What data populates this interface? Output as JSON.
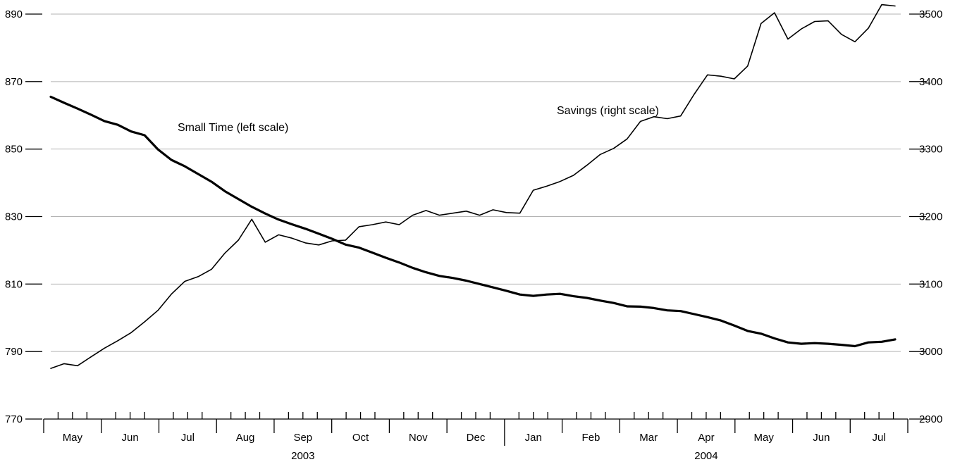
{
  "chart_data": {
    "type": "line",
    "left_axis": {
      "ylim": [
        770,
        890
      ],
      "ticks": [
        "770",
        "790",
        "810",
        "830",
        "850",
        "870",
        "890"
      ]
    },
    "right_axis": {
      "ylim": [
        2900,
        3500
      ],
      "ticks": [
        "2900",
        "3000",
        "3100",
        "3200",
        "3300",
        "3400",
        "3500"
      ]
    },
    "grid": "horizontal",
    "x_month_labels": [
      "May",
      "Jun",
      "Jul",
      "Aug",
      "Sep",
      "Oct",
      "Nov",
      "Dec",
      "Jan",
      "Feb",
      "Mar",
      "Apr",
      "May",
      "Jun",
      "Jul"
    ],
    "x_year_labels": [
      {
        "label": "2003",
        "center_month": 4.5
      },
      {
        "label": "2004",
        "center_month": 11.5
      }
    ],
    "x_start": "2003-05",
    "x_end": "2004-07",
    "weeks_per_month": 4,
    "series": [
      {
        "name": "Small Time (left scale)",
        "axis": "left",
        "color": "#000000",
        "values": [
          865.5,
          863.7,
          862.0,
          860.2,
          858.3,
          857.2,
          855.2,
          854.1,
          849.9,
          846.8,
          844.9,
          842.6,
          840.3,
          837.5,
          835.2,
          832.9,
          830.9,
          829.1,
          827.7,
          826.4,
          824.9,
          823.4,
          821.7,
          820.8,
          819.3,
          817.8,
          816.4,
          814.8,
          813.5,
          812.4,
          811.8,
          811.0,
          810.0,
          809.0,
          808.0,
          806.9,
          806.5,
          806.9,
          807.1,
          806.4,
          805.9,
          805.1,
          804.4,
          803.4,
          803.3,
          802.9,
          802.2,
          802.0,
          801.1,
          800.2,
          799.2,
          797.7,
          796.1,
          795.3,
          793.9,
          792.7,
          792.3,
          792.5,
          792.3,
          792.0,
          791.6,
          792.7,
          792.9,
          793.6
        ]
      },
      {
        "name": "Savings (right scale)",
        "axis": "right",
        "color": "#000000",
        "values": [
          2975,
          2982,
          2979,
          2992,
          3005,
          3016,
          3028,
          3044,
          3061,
          3085,
          3104,
          3111,
          3122,
          3146,
          3165,
          3196,
          3162,
          3173,
          3168,
          3161,
          3158,
          3164,
          3165,
          3185,
          3188,
          3192,
          3188,
          3202,
          3209,
          3202,
          3205,
          3208,
          3202,
          3210,
          3206,
          3205,
          3239,
          3245,
          3252,
          3261,
          3276,
          3292,
          3301,
          3315,
          3341,
          3348,
          3345,
          3349,
          3381,
          3410,
          3408,
          3404,
          3423,
          3486,
          3502,
          3463,
          3478,
          3489,
          3490,
          3470,
          3459,
          3479,
          3514,
          3512
        ]
      }
    ],
    "annotations": [
      {
        "text": "Small Time (left scale)",
        "series": 0
      },
      {
        "text": "Savings (right scale)",
        "series": 1
      }
    ]
  }
}
